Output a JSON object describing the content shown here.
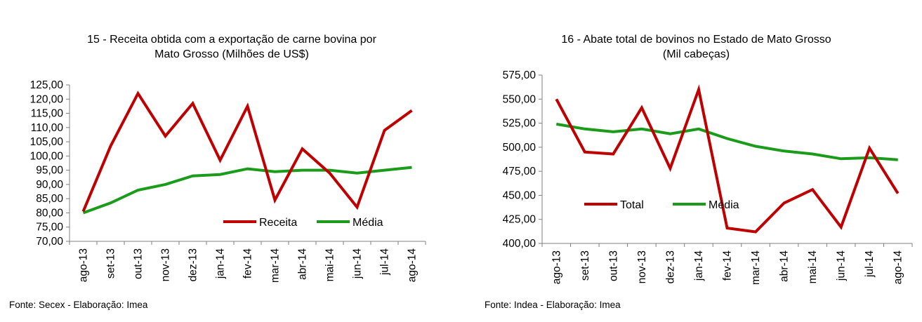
{
  "chart_data": [
    {
      "type": "line",
      "title_line1": "15 - Receita obtida com a exportação de carne bovina por",
      "title_line2": "Mato Grosso (Milhões de US$)",
      "categories": [
        "ago-13",
        "set-13",
        "out-13",
        "nov-13",
        "dez-13",
        "jan-14",
        "fev-14",
        "mar-14",
        "abr-14",
        "mai-14",
        "jun-14",
        "jul-14",
        "ago-14"
      ],
      "series": [
        {
          "name": "Receita",
          "color": "#c00000",
          "values": [
            80.5,
            103.5,
            122.0,
            107.0,
            118.5,
            98.5,
            117.5,
            84.5,
            102.5,
            94.0,
            82.0,
            109.0,
            116.0
          ]
        },
        {
          "name": "Média",
          "color": "#1a9c1a",
          "values": [
            80.0,
            83.5,
            88.0,
            90.0,
            93.0,
            93.5,
            95.5,
            94.5,
            95.0,
            95.0,
            94.0,
            95.0,
            96.0
          ]
        }
      ],
      "y_ticks": [
        "70,00",
        "75,00",
        "80,00",
        "85,00",
        "90,00",
        "95,00",
        "100,00",
        "105,00",
        "110,00",
        "115,00",
        "120,00",
        "125,00"
      ],
      "ylim": [
        70,
        125
      ],
      "legend_position": "bottom-right",
      "source": "Fonte: Secex - Elaboração: Imea"
    },
    {
      "type": "line",
      "title_line1": "16 - Abate total de bovinos no Estado de Mato Grosso",
      "title_line2": "(Mil cabeças)",
      "categories": [
        "ago-13",
        "set-13",
        "out-13",
        "nov-13",
        "dez-13",
        "jan-14",
        "fev-14",
        "mar-14",
        "abr-14",
        "mai-14",
        "jun-14",
        "jul-14",
        "ago-14"
      ],
      "series": [
        {
          "name": "Total",
          "color": "#c00000",
          "values": [
            550,
            495,
            493,
            541,
            478,
            560,
            416,
            412,
            442,
            456,
            417,
            499,
            452
          ]
        },
        {
          "name": "Média",
          "color": "#1a9c1a",
          "values": [
            524,
            519,
            516,
            519,
            514,
            519,
            509,
            501,
            496,
            493,
            488,
            489,
            487
          ]
        }
      ],
      "y_ticks": [
        "400,00",
        "425,00",
        "450,00",
        "475,00",
        "500,00",
        "525,00",
        "550,00",
        "575,00"
      ],
      "ylim": [
        400,
        575
      ],
      "legend_position": "bottom-left",
      "source": "Fonte: Indea - Elaboração: Imea"
    }
  ]
}
